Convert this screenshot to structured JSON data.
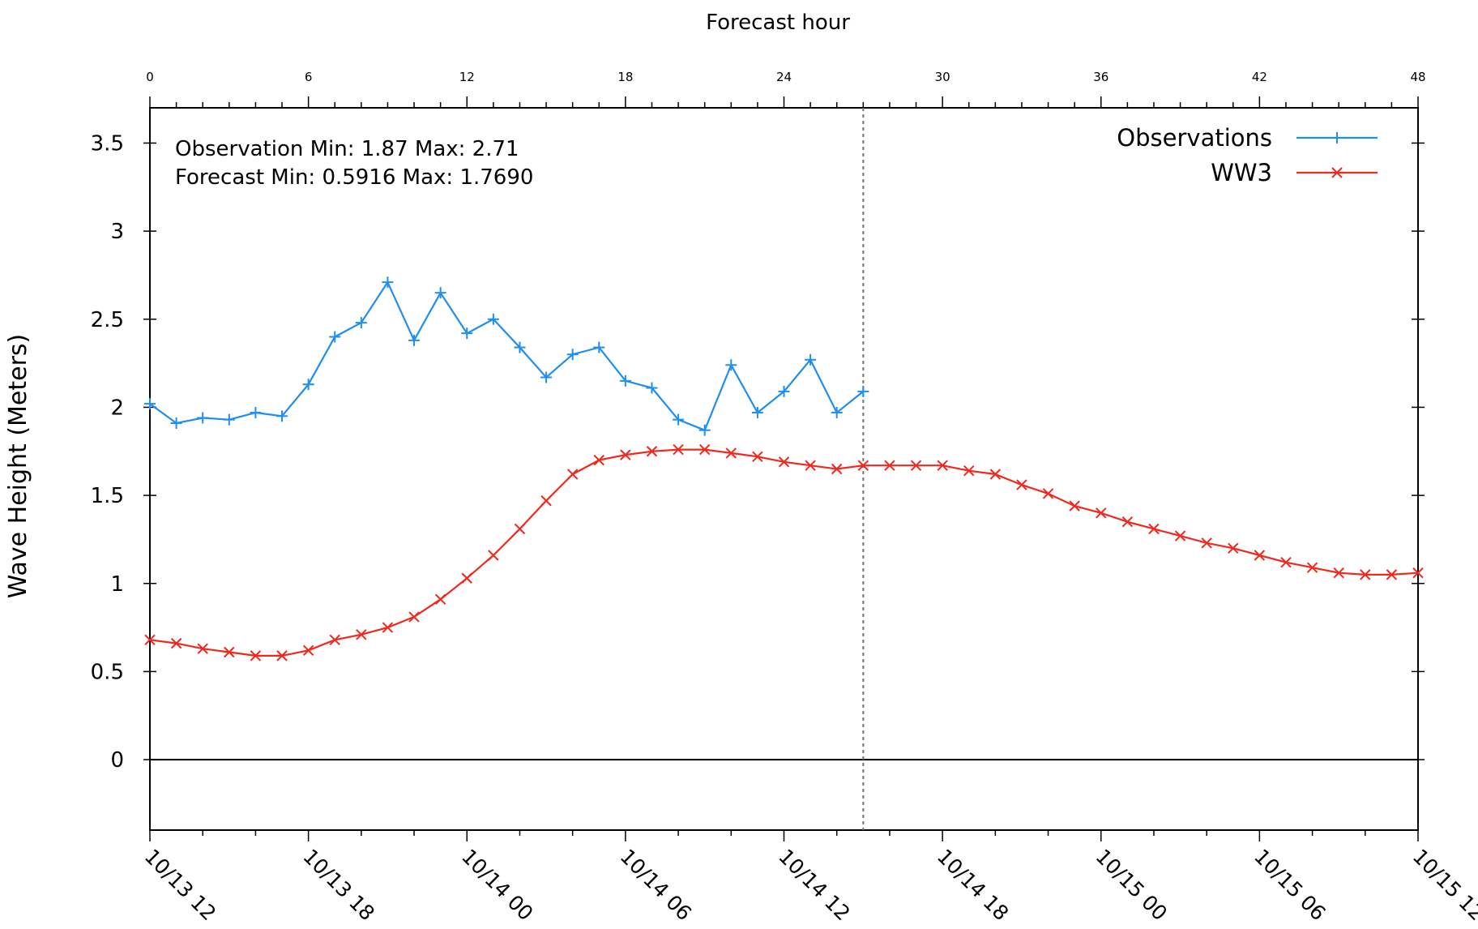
{
  "chart_data": {
    "type": "line",
    "title": "",
    "top_axis": {
      "label": "Forecast hour",
      "ticks": [
        0,
        6,
        12,
        18,
        24,
        30,
        36,
        42,
        48
      ],
      "range": [
        0,
        48
      ]
    },
    "xlabel": "",
    "ylabel": "Wave Height (Meters)",
    "ylim": [
      -0.4,
      3.7
    ],
    "y_ticks": [
      0,
      0.5,
      1,
      1.5,
      2,
      2.5,
      3,
      3.5
    ],
    "y_tick_labels": [
      "0",
      "0.5",
      "1",
      "1.5",
      "2",
      "2.5",
      "3",
      "3.5"
    ],
    "x_tick_labels": [
      "10/13 12",
      "10/13 18",
      "10/14 00",
      "10/14 06",
      "10/14 12",
      "10/14 18",
      "10/15 00",
      "10/15 06",
      "10/15 12"
    ],
    "x_tick_hours": [
      0,
      6,
      12,
      18,
      24,
      30,
      36,
      42,
      48
    ],
    "grid": false,
    "current_time_hour": 27,
    "zero_line": true,
    "legend": {
      "position": "top-right"
    },
    "annotations": {
      "observation": "Observation Min: 1.87 Max: 2.71",
      "forecast": "Forecast Min: 0.5916 Max: 1.7690"
    },
    "series": [
      {
        "name": "Observations",
        "color": "#1e8ff0",
        "marker": "plus",
        "x": [
          0,
          1,
          2,
          3,
          4,
          5,
          6,
          7,
          8,
          9,
          10,
          11,
          12,
          13,
          14,
          15,
          16,
          17,
          18,
          19,
          20,
          21,
          22,
          23,
          24,
          25,
          26,
          27
        ],
        "values": [
          2.02,
          1.91,
          1.94,
          1.93,
          1.97,
          1.95,
          2.13,
          2.4,
          2.48,
          2.71,
          2.38,
          2.65,
          2.42,
          2.5,
          2.34,
          2.17,
          2.3,
          2.34,
          2.15,
          2.11,
          1.93,
          1.87,
          2.24,
          1.97,
          2.09,
          2.27,
          1.97,
          2.09
        ]
      },
      {
        "name": "WW3",
        "color": "#f0281e",
        "marker": "x",
        "x": [
          0,
          1,
          2,
          3,
          4,
          5,
          6,
          7,
          8,
          9,
          10,
          11,
          12,
          13,
          14,
          15,
          16,
          17,
          18,
          19,
          20,
          21,
          22,
          23,
          24,
          25,
          26,
          27,
          28,
          29,
          30,
          31,
          32,
          33,
          34,
          35,
          36,
          37,
          38,
          39,
          40,
          41,
          42,
          43,
          44,
          45,
          46,
          47,
          48
        ],
        "values": [
          0.68,
          0.66,
          0.63,
          0.61,
          0.59,
          0.59,
          0.62,
          0.68,
          0.71,
          0.75,
          0.81,
          0.91,
          1.03,
          1.16,
          1.31,
          1.47,
          1.62,
          1.7,
          1.73,
          1.75,
          1.76,
          1.76,
          1.74,
          1.72,
          1.69,
          1.67,
          1.65,
          1.67,
          1.67,
          1.67,
          1.67,
          1.64,
          1.62,
          1.56,
          1.51,
          1.44,
          1.4,
          1.35,
          1.31,
          1.27,
          1.23,
          1.2,
          1.16,
          1.12,
          1.09,
          1.06,
          1.05,
          1.05,
          1.06
        ]
      }
    ]
  }
}
